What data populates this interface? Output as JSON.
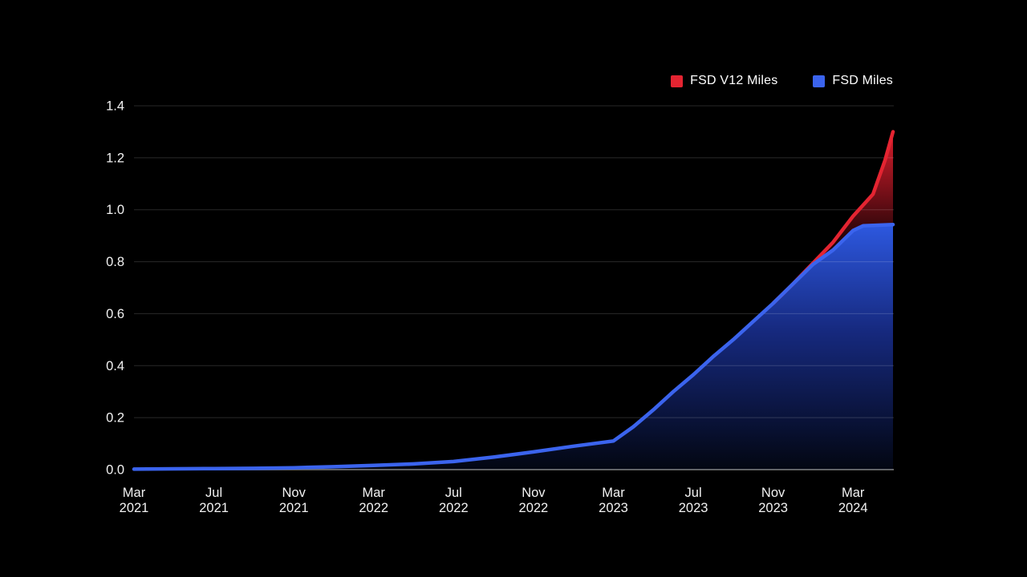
{
  "colors": {
    "background": "#000000",
    "grid": "rgba(255,255,255,0.16)",
    "axis_baseline": "rgba(255,255,255,0.38)",
    "tick_text": "#f2f2f2",
    "legend_text": "#ffffff",
    "blue_fill_top": "#2f5ce8",
    "blue_fill_mid": "#16297e",
    "blue_fill_bottom": "#02050e",
    "red_fill_top": "#e01f2d",
    "red_fill_mid": "#7a1019",
    "red_fill_bottom": "#220407"
  },
  "chart_data": {
    "type": "area",
    "title": "",
    "legend_position": "top-right",
    "grid": true,
    "ylim": [
      0,
      1.4
    ],
    "ytick_labels": [
      "0.0",
      "0.2",
      "0.4",
      "0.6",
      "0.8",
      "1.0",
      "1.2",
      "1.4"
    ],
    "yticks": [
      0,
      0.2,
      0.4,
      0.6,
      0.8,
      1.0,
      1.2,
      1.4
    ],
    "x_unit": "months-since-Mar-2021",
    "x_months_total": 38,
    "x_start": "Mar 2021",
    "x_end": "May 2024",
    "xticks": [
      {
        "m": 0,
        "month": "Mar",
        "year": "2021"
      },
      {
        "m": 4,
        "month": "Jul",
        "year": "2021"
      },
      {
        "m": 8,
        "month": "Nov",
        "year": "2021"
      },
      {
        "m": 12,
        "month": "Mar",
        "year": "2022"
      },
      {
        "m": 16,
        "month": "Jul",
        "year": "2022"
      },
      {
        "m": 20,
        "month": "Nov",
        "year": "2022"
      },
      {
        "m": 24,
        "month": "Mar",
        "year": "2023"
      },
      {
        "m": 28,
        "month": "Jul",
        "year": "2023"
      },
      {
        "m": 32,
        "month": "Nov",
        "year": "2023"
      },
      {
        "m": 36,
        "month": "Mar",
        "year": "2024"
      }
    ],
    "legend": [
      {
        "label": "FSD V12 Miles",
        "color": "#e42431"
      },
      {
        "label": "FSD Miles",
        "color": "#3b64ee"
      }
    ],
    "series": [
      {
        "name": "FSD Miles",
        "color": "#3b64ee",
        "points": [
          [
            0,
            0.002
          ],
          [
            2,
            0.003
          ],
          [
            4,
            0.004
          ],
          [
            6,
            0.005
          ],
          [
            8,
            0.007
          ],
          [
            10,
            0.011
          ],
          [
            12,
            0.016
          ],
          [
            14,
            0.022
          ],
          [
            16,
            0.031
          ],
          [
            18,
            0.048
          ],
          [
            20,
            0.068
          ],
          [
            22,
            0.09
          ],
          [
            24,
            0.11
          ],
          [
            25,
            0.165
          ],
          [
            26,
            0.23
          ],
          [
            27,
            0.3
          ],
          [
            28,
            0.365
          ],
          [
            29,
            0.435
          ],
          [
            30,
            0.5
          ],
          [
            31,
            0.57
          ],
          [
            32,
            0.64
          ],
          [
            33,
            0.715
          ],
          [
            34,
            0.79
          ],
          [
            35,
            0.845
          ],
          [
            36,
            0.92
          ],
          [
            36.5,
            0.938
          ],
          [
            38,
            0.943
          ]
        ]
      },
      {
        "name": "FSD V12 Miles",
        "color": "#e42431",
        "stacked_on": "FSD Miles",
        "points": [
          [
            32,
            0.64
          ],
          [
            33,
            0.715
          ],
          [
            34,
            0.795
          ],
          [
            35,
            0.875
          ],
          [
            36,
            0.975
          ],
          [
            37,
            1.06
          ],
          [
            37.6,
            1.19
          ],
          [
            38,
            1.3
          ]
        ]
      }
    ]
  }
}
